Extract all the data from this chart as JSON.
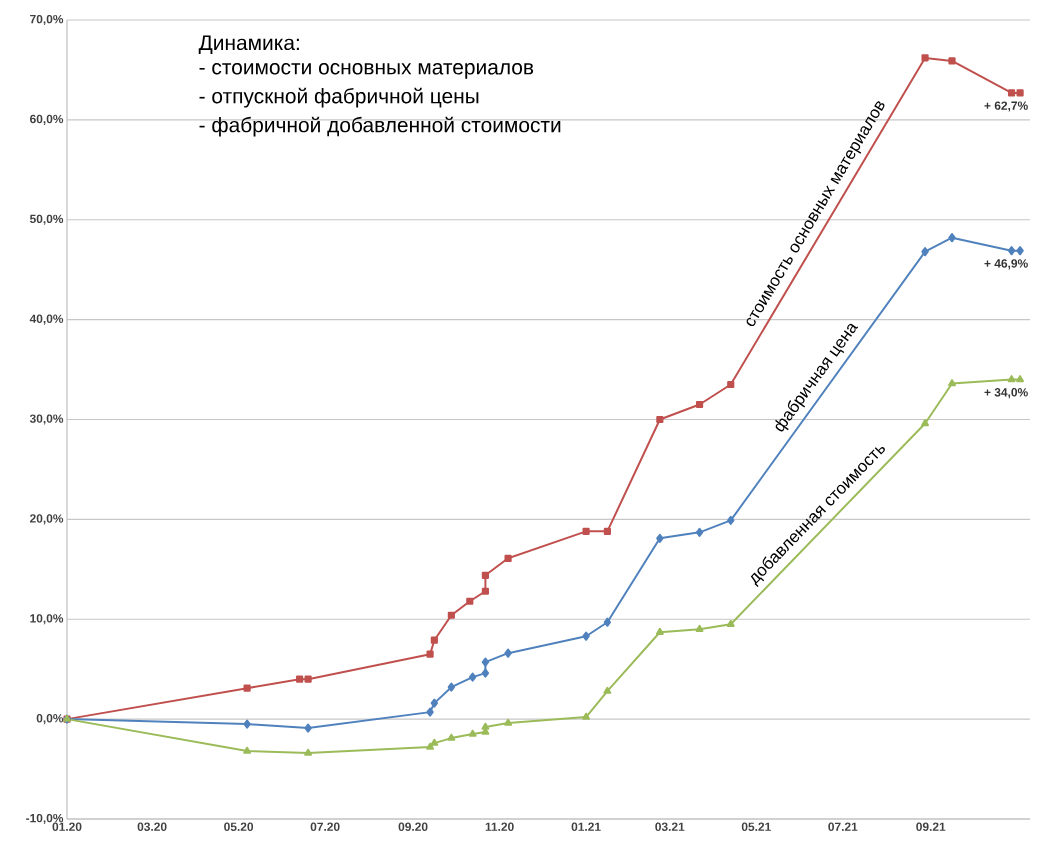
{
  "chart_data": {
    "type": "line",
    "title": "Динамика:",
    "annotations": [
      "-   стоимости основных материалов",
      "-   отпускной фабричной цены",
      "-   фабричной добавленной стоимости",
      {
        "text": "+ 62,7%",
        "x": "2021-11-03",
        "y": 62.7
      },
      {
        "text": "+ 46,9%",
        "x": "2021-11-03",
        "y": 46.9
      },
      {
        "text": "+ 34,0%",
        "x": "2021-11-03",
        "y": 34.0
      }
    ],
    "series": [
      {
        "name": "стоимость основных материалов",
        "color": "#c0504d",
        "marker": "square",
        "x": [
          "2020-01-01",
          "2020-05-07",
          "2020-06-13",
          "2020-06-19",
          "2020-09-13",
          "2020-09-16",
          "2020-09-28",
          "2020-10-11",
          "2020-10-22",
          "2020-10-22",
          "2020-11-07",
          "2021-01-01",
          "2021-01-16",
          "2021-02-22",
          "2021-03-22",
          "2021-04-13",
          "2021-08-28",
          "2021-09-16",
          "2021-10-28",
          "2021-11-03"
        ],
        "values": [
          0,
          3.1,
          4.0,
          4.0,
          6.5,
          7.9,
          10.4,
          11.8,
          12.8,
          14.4,
          16.1,
          18.8,
          18.8,
          30.0,
          31.5,
          33.5,
          66.2,
          65.9,
          62.7,
          62.7
        ]
      },
      {
        "name": "фабричная цена",
        "color": "#4f81bd",
        "marker": "diamond",
        "x": [
          "2020-01-01",
          "2020-05-07",
          "2020-06-19",
          "2020-09-13",
          "2020-09-16",
          "2020-09-28",
          "2020-10-13",
          "2020-10-22",
          "2020-10-22",
          "2020-11-07",
          "2021-01-01",
          "2021-01-16",
          "2021-02-22",
          "2021-03-22",
          "2021-04-13",
          "2021-08-28",
          "2021-09-16",
          "2021-10-28",
          "2021-11-03"
        ],
        "values": [
          0,
          -0.5,
          -0.9,
          0.7,
          1.6,
          3.2,
          4.2,
          4.6,
          5.7,
          6.6,
          8.3,
          9.7,
          18.1,
          18.7,
          19.9,
          46.8,
          48.2,
          46.9,
          46.9
        ]
      },
      {
        "name": "добавленная стоимость",
        "color": "#9bbb59",
        "marker": "triangle",
        "x": [
          "2020-01-01",
          "2020-05-07",
          "2020-06-19",
          "2020-09-13",
          "2020-09-16",
          "2020-09-28",
          "2020-10-13",
          "2020-10-22",
          "2020-10-22",
          "2020-11-07",
          "2021-01-01",
          "2021-01-16",
          "2021-02-22",
          "2021-03-22",
          "2021-04-13",
          "2021-08-28",
          "2021-09-16",
          "2021-10-28",
          "2021-11-03"
        ],
        "values": [
          0,
          -3.2,
          -3.4,
          -2.8,
          -2.4,
          -1.9,
          -1.5,
          -1.3,
          -0.8,
          -0.4,
          0.2,
          2.8,
          8.7,
          9.0,
          9.5,
          29.6,
          33.6,
          34.0,
          34.0
        ]
      }
    ],
    "xlim": [
      "2020-01-01",
      "2021-11-10"
    ],
    "xticks": [
      {
        "value": "2020-01",
        "label": "01.20"
      },
      {
        "value": "2020-03",
        "label": "03.20"
      },
      {
        "value": "2020-05",
        "label": "05.20"
      },
      {
        "value": "2020-07",
        "label": "07.20"
      },
      {
        "value": "2020-09",
        "label": "09.20"
      },
      {
        "value": "2020-11",
        "label": "11.20"
      },
      {
        "value": "2021-01",
        "label": "01.21"
      },
      {
        "value": "2021-03",
        "label": "03.21"
      },
      {
        "value": "2021-05",
        "label": "05.21"
      },
      {
        "value": "2021-07",
        "label": "07.21"
      },
      {
        "value": "2021-09",
        "label": "09.21"
      }
    ],
    "ylim": [
      -10,
      70
    ],
    "yticks": [
      {
        "value": -10,
        "label": "-10,0%"
      },
      {
        "value": 0,
        "label": "0,0%"
      },
      {
        "value": 10,
        "label": "10,0%"
      },
      {
        "value": 20,
        "label": "20,0%"
      },
      {
        "value": 30,
        "label": "30,0%"
      },
      {
        "value": 40,
        "label": "40,0%"
      },
      {
        "value": 50,
        "label": "50,0%"
      },
      {
        "value": 60,
        "label": "60,0%"
      },
      {
        "value": 70,
        "label": "70,0%"
      }
    ],
    "grid": "y",
    "legend": false
  }
}
